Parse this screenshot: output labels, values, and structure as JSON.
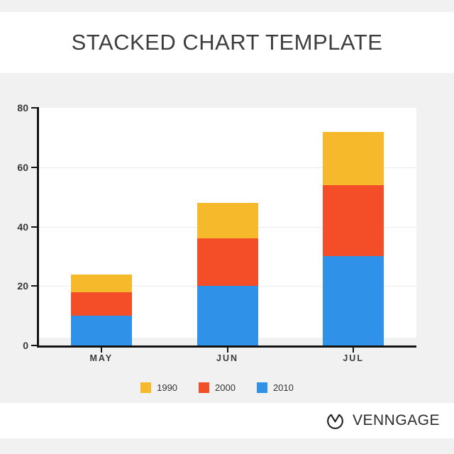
{
  "title": "STACKED CHART TEMPLATE",
  "chart_data": {
    "type": "bar",
    "variant": "stacked",
    "title": "STACKED CHART TEMPLATE",
    "categories": [
      "MAY",
      "JUN",
      "JUL"
    ],
    "series": [
      {
        "name": "1990",
        "color": "#F6B92C",
        "values": [
          6,
          12,
          18
        ]
      },
      {
        "name": "2000",
        "color": "#F44E28",
        "values": [
          8,
          16,
          24
        ]
      },
      {
        "name": "2010",
        "color": "#2F92E8",
        "values": [
          10,
          20,
          30
        ]
      }
    ],
    "stack_order_bottom_to_top": [
      "2010",
      "2000",
      "1990"
    ],
    "totals": [
      24,
      48,
      72
    ],
    "xlabel": "",
    "ylabel": "",
    "yticks": [
      0,
      20,
      40,
      60,
      80
    ],
    "ylim": [
      0,
      80
    ],
    "grid": true,
    "legend_position": "bottom"
  },
  "footer": {
    "brand": "VENNGAGE",
    "logo_icon": "venngage-circle-v-icon"
  },
  "colors": {
    "page_background": "#F1F1F2",
    "panel_background": "#FFFFFF",
    "axis": "#141414",
    "gridline": "#ECECEC",
    "title_text": "#3D3D3D",
    "axis_label_text": "#383838",
    "legend_text": "#333333"
  }
}
